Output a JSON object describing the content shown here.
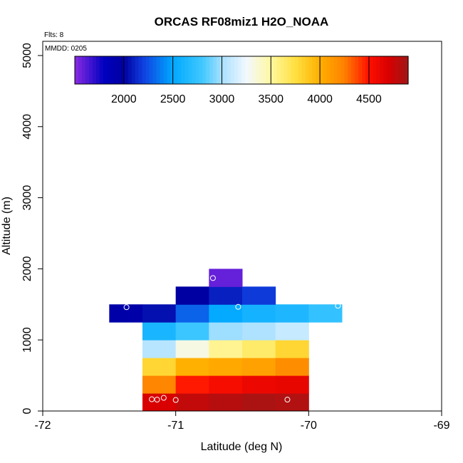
{
  "chart_data": {
    "type": "heatmap",
    "title": "ORCAS RF08miz1 H2O_NOAA",
    "xlabel": "Latitude (deg N)",
    "ylabel": "Altitude (m)",
    "xlim": [
      -72,
      -69
    ],
    "ylim": [
      0,
      5200
    ],
    "x_ticks": [
      -72,
      -71,
      -70,
      -69
    ],
    "y_ticks": [
      0,
      1000,
      2000,
      3000,
      4000,
      5000
    ],
    "flights_label": "Flts: 8",
    "mmdd_label": "MMDD: 0205",
    "cell_width_deg": 0.25,
    "cell_height_m": 250,
    "colorbar": {
      "min": 1500,
      "max": 4900,
      "ticks": [
        2000,
        2500,
        3000,
        3500,
        4000,
        4500
      ],
      "stops": [
        {
          "value": 1500,
          "color": "#8a2be2"
        },
        {
          "value": 1800,
          "color": "#0000c0"
        },
        {
          "value": 2000,
          "color": "#0000a0"
        },
        {
          "value": 2200,
          "color": "#1040e0"
        },
        {
          "value": 2500,
          "color": "#00a8ff"
        },
        {
          "value": 2800,
          "color": "#40c8ff"
        },
        {
          "value": 3000,
          "color": "#a8e0ff"
        },
        {
          "value": 3250,
          "color": "#f2f8ff"
        },
        {
          "value": 3500,
          "color": "#fff8a0"
        },
        {
          "value": 3750,
          "color": "#ffe040"
        },
        {
          "value": 4000,
          "color": "#ffb000"
        },
        {
          "value": 4250,
          "color": "#ff8000"
        },
        {
          "value": 4500,
          "color": "#ff1000"
        },
        {
          "value": 4700,
          "color": "#d80000"
        },
        {
          "value": 4900,
          "color": "#a01818"
        }
      ]
    },
    "cells": [
      {
        "lat": -71.25,
        "alt": 0,
        "value": 4700
      },
      {
        "lat": -71.0,
        "alt": 0,
        "value": 4780
      },
      {
        "lat": -70.75,
        "alt": 0,
        "value": 4820
      },
      {
        "lat": -70.5,
        "alt": 0,
        "value": 4860
      },
      {
        "lat": -70.25,
        "alt": 0,
        "value": 4840
      },
      {
        "lat": -71.25,
        "alt": 250,
        "value": 4220
      },
      {
        "lat": -71.0,
        "alt": 250,
        "value": 4480
      },
      {
        "lat": -70.75,
        "alt": 250,
        "value": 4540
      },
      {
        "lat": -70.5,
        "alt": 250,
        "value": 4600
      },
      {
        "lat": -70.25,
        "alt": 250,
        "value": 4620
      },
      {
        "lat": -71.25,
        "alt": 500,
        "value": 3800
      },
      {
        "lat": -71.0,
        "alt": 500,
        "value": 4000
      },
      {
        "lat": -70.75,
        "alt": 500,
        "value": 4040
      },
      {
        "lat": -70.5,
        "alt": 500,
        "value": 4080
      },
      {
        "lat": -70.25,
        "alt": 500,
        "value": 4180
      },
      {
        "lat": -71.25,
        "alt": 750,
        "value": 3050
      },
      {
        "lat": -71.0,
        "alt": 750,
        "value": 3320
      },
      {
        "lat": -70.75,
        "alt": 750,
        "value": 3540
      },
      {
        "lat": -70.5,
        "alt": 750,
        "value": 3640
      },
      {
        "lat": -70.25,
        "alt": 750,
        "value": 3800
      },
      {
        "lat": -71.25,
        "alt": 1000,
        "value": 2620
      },
      {
        "lat": -71.0,
        "alt": 1000,
        "value": 2780
      },
      {
        "lat": -70.75,
        "alt": 1000,
        "value": 2980
      },
      {
        "lat": -70.5,
        "alt": 1000,
        "value": 3020
      },
      {
        "lat": -70.25,
        "alt": 1000,
        "value": 3100
      },
      {
        "lat": -71.5,
        "alt": 1250,
        "value": 1950
      },
      {
        "lat": -71.25,
        "alt": 1250,
        "value": 2050
      },
      {
        "lat": -71.0,
        "alt": 1250,
        "value": 2300
      },
      {
        "lat": -70.75,
        "alt": 1250,
        "value": 2520
      },
      {
        "lat": -70.5,
        "alt": 1250,
        "value": 2600
      },
      {
        "lat": -70.25,
        "alt": 1250,
        "value": 2640
      },
      {
        "lat": -70.0,
        "alt": 1250,
        "value": 2740
      },
      {
        "lat": -71.0,
        "alt": 1500,
        "value": 1990
      },
      {
        "lat": -70.75,
        "alt": 1500,
        "value": 2100
      },
      {
        "lat": -70.5,
        "alt": 1500,
        "value": 2180
      },
      {
        "lat": -70.75,
        "alt": 1750,
        "value": 1580
      }
    ],
    "points": [
      {
        "lat": -71.37,
        "alt": 1460
      },
      {
        "lat": -71.18,
        "alt": 165
      },
      {
        "lat": -71.14,
        "alt": 160
      },
      {
        "lat": -71.09,
        "alt": 185
      },
      {
        "lat": -71.0,
        "alt": 155
      },
      {
        "lat": -70.72,
        "alt": 1870
      },
      {
        "lat": -70.53,
        "alt": 1465
      },
      {
        "lat": -70.16,
        "alt": 160
      },
      {
        "lat": -69.78,
        "alt": 1480
      }
    ]
  }
}
